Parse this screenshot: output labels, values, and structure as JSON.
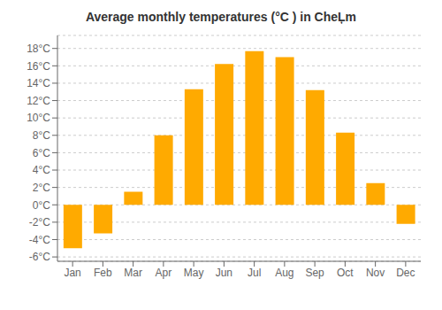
{
  "chart_data": {
    "type": "bar",
    "title": "Average monthly temperatures (°C ) in CheĻm",
    "categories": [
      "Jan",
      "Feb",
      "Mar",
      "Apr",
      "May",
      "Jun",
      "Jul",
      "Aug",
      "Sep",
      "Oct",
      "Nov",
      "Dec"
    ],
    "values": [
      -5.0,
      -3.3,
      1.5,
      8.0,
      13.3,
      16.2,
      17.7,
      17.0,
      13.2,
      8.3,
      2.5,
      -2.2
    ],
    "color": "#FFAA00",
    "ylim": [
      -6.5,
      19.5
    ],
    "yticks": [
      {
        "value": -6,
        "label": "-6°C"
      },
      {
        "value": -4,
        "label": "-4°C"
      },
      {
        "value": -2,
        "label": "-2°C"
      },
      {
        "value": 0,
        "label": "0°C"
      },
      {
        "value": 2,
        "label": "2°C"
      },
      {
        "value": 4,
        "label": "4°C"
      },
      {
        "value": 6,
        "label": "6°C"
      },
      {
        "value": 8,
        "label": "8°C"
      },
      {
        "value": 10,
        "label": "10°C"
      },
      {
        "value": 12,
        "label": "12°C"
      },
      {
        "value": 14,
        "label": "14°C"
      },
      {
        "value": 16,
        "label": "16°C"
      },
      {
        "value": 18,
        "label": "18°C"
      }
    ],
    "grid": true
  }
}
